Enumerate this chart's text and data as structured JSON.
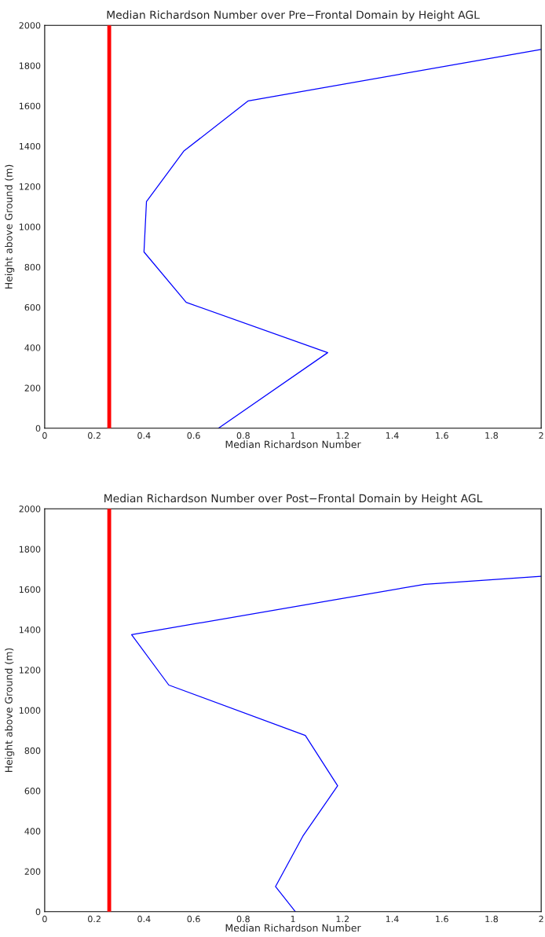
{
  "chart_data": [
    {
      "type": "line",
      "title": "Median Richardson Number over Pre−Frontal Domain by Height AGL",
      "xlabel": "Median Richardson Number",
      "ylabel": "Height above Ground (m)",
      "series": [
        {
          "color": "#0000ff",
          "x": [
            0.7,
            1.14,
            0.57,
            0.4,
            0.41,
            0.56,
            0.82,
            2.0
          ],
          "values": [
            0,
            375,
            625,
            875,
            1125,
            1375,
            1625,
            1880
          ]
        }
      ],
      "xlim": [
        0,
        2
      ],
      "xticks": [
        0,
        0.2,
        0.4,
        0.6,
        0.8,
        1,
        1.2,
        1.4,
        1.6,
        1.8,
        2
      ],
      "ylim": [
        0,
        2000
      ],
      "yticks": [
        0,
        200,
        400,
        600,
        800,
        1000,
        1200,
        1400,
        1600,
        1800,
        2000
      ],
      "ref_lines": [
        {
          "axis": "x",
          "value": 0.26,
          "color": "#ff0000"
        }
      ],
      "grid": false,
      "legend": false
    },
    {
      "type": "line",
      "title": "Median Richardson Number over Post−Frontal Domain by Height AGL",
      "xlabel": "Median Richardson Number",
      "ylabel": "Height above Ground (m)",
      "series": [
        {
          "color": "#0000ff",
          "x": [
            1.01,
            0.93,
            1.04,
            1.18,
            1.05,
            0.5,
            0.35,
            1.53,
            2.0
          ],
          "values": [
            0,
            125,
            375,
            625,
            875,
            1125,
            1375,
            1625,
            1665
          ]
        }
      ],
      "xlim": [
        0,
        2
      ],
      "xticks": [
        0,
        0.2,
        0.4,
        0.6,
        0.8,
        1,
        1.2,
        1.4,
        1.6,
        1.8,
        2
      ],
      "ylim": [
        0,
        2000
      ],
      "yticks": [
        0,
        200,
        400,
        600,
        800,
        1000,
        1200,
        1400,
        1600,
        1800,
        2000
      ],
      "ref_lines": [
        {
          "axis": "x",
          "value": 0.26,
          "color": "#ff0000"
        }
      ],
      "grid": false,
      "legend": false
    }
  ]
}
